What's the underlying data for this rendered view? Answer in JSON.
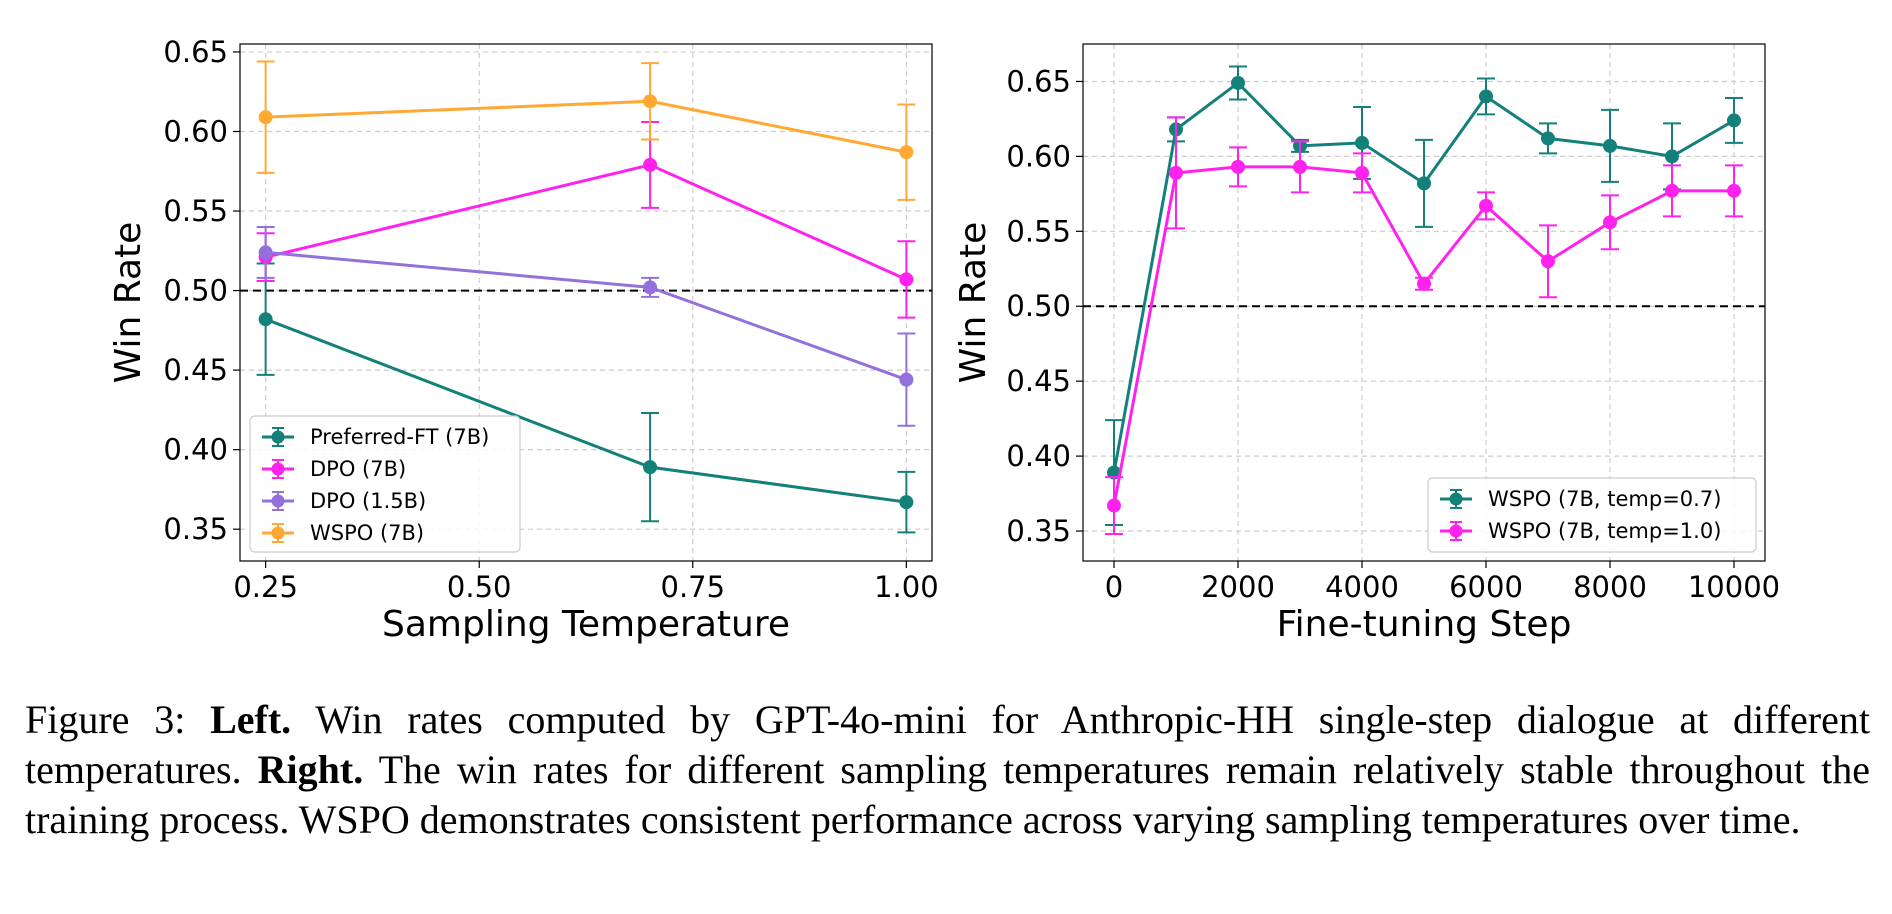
{
  "colors": {
    "teal": "#14807a",
    "magenta": "#ff22ee",
    "purple": "#9370db",
    "orange": "#ffa832",
    "grid": "#cccccc",
    "reference_line": "#000000"
  },
  "chart_data": [
    {
      "type": "line",
      "error_bars": true,
      "xlabel": "Sampling Temperature",
      "ylabel": "Win Rate",
      "xlim": [
        0.22,
        1.03
      ],
      "ylim": [
        0.33,
        0.655
      ],
      "xticks": [
        0.25,
        0.5,
        0.75,
        1.0
      ],
      "xtick_labels": [
        "0.25",
        "0.50",
        "0.75",
        "1.00"
      ],
      "yticks": [
        0.35,
        0.4,
        0.45,
        0.5,
        0.55,
        0.6,
        0.65
      ],
      "ytick_labels": [
        "0.35",
        "0.40",
        "0.45",
        "0.50",
        "0.55",
        "0.60",
        "0.65"
      ],
      "grid": true,
      "reference_line": 0.5,
      "legend_position": "lower-left",
      "x": [
        0.25,
        0.7,
        1.0
      ],
      "series": [
        {
          "name": "Preferred-FT (7B)",
          "color": "teal",
          "values": [
            0.482,
            0.389,
            0.367
          ],
          "errors": [
            0.035,
            0.034,
            0.019
          ]
        },
        {
          "name": "DPO (7B)",
          "color": "magenta",
          "values": [
            0.521,
            0.579,
            0.507
          ],
          "errors": [
            0.015,
            0.027,
            0.024
          ]
        },
        {
          "name": "DPO (1.5B)",
          "color": "purple",
          "values": [
            0.524,
            0.502,
            0.444
          ],
          "errors": [
            0.016,
            0.006,
            0.029
          ]
        },
        {
          "name": "WSPO (7B)",
          "color": "orange",
          "values": [
            0.609,
            0.619,
            0.587
          ],
          "errors": [
            0.035,
            0.024,
            0.03
          ]
        }
      ]
    },
    {
      "type": "line",
      "error_bars": true,
      "xlabel": "Fine-tuning Step",
      "ylabel": "Win Rate",
      "xlim": [
        -500,
        10500
      ],
      "ylim": [
        0.33,
        0.675
      ],
      "xticks": [
        0,
        2000,
        4000,
        6000,
        8000,
        10000
      ],
      "xtick_labels": [
        "0",
        "2000",
        "4000",
        "6000",
        "8000",
        "10000"
      ],
      "yticks": [
        0.35,
        0.4,
        0.45,
        0.5,
        0.55,
        0.6,
        0.65
      ],
      "ytick_labels": [
        "0.35",
        "0.40",
        "0.45",
        "0.50",
        "0.55",
        "0.60",
        "0.65"
      ],
      "grid": true,
      "reference_line": 0.5,
      "legend_position": "lower-right",
      "x": [
        0,
        1000,
        2000,
        3000,
        4000,
        5000,
        6000,
        7000,
        8000,
        9000,
        10000
      ],
      "series": [
        {
          "name": "WSPO (7B, temp=0.7)",
          "color": "teal",
          "values": [
            0.389,
            0.618,
            0.649,
            0.607,
            0.609,
            0.582,
            0.64,
            0.612,
            0.607,
            0.6,
            0.624
          ],
          "errors": [
            0.035,
            0.008,
            0.011,
            0.004,
            0.024,
            0.029,
            0.012,
            0.01,
            0.024,
            0.022,
            0.015
          ]
        },
        {
          "name": "WSPO (7B, temp=1.0)",
          "color": "magenta",
          "values": [
            0.367,
            0.589,
            0.593,
            0.593,
            0.589,
            0.515,
            0.567,
            0.53,
            0.556,
            0.577,
            0.577
          ],
          "errors": [
            0.019,
            0.037,
            0.013,
            0.017,
            0.013,
            0.004,
            0.009,
            0.024,
            0.018,
            0.017,
            0.017
          ]
        }
      ]
    }
  ],
  "caption": {
    "label": "Figure 3:",
    "left_heading": "Left.",
    "left_text": "Win rates computed by GPT-4o-mini for Anthropic-HH single-step dialogue at different temperatures.",
    "right_heading": "Right.",
    "right_text": "The win rates for different sampling temperatures remain relatively stable throughout the training process. WSPO demonstrates consistent performance across varying sampling temperatures over time."
  }
}
